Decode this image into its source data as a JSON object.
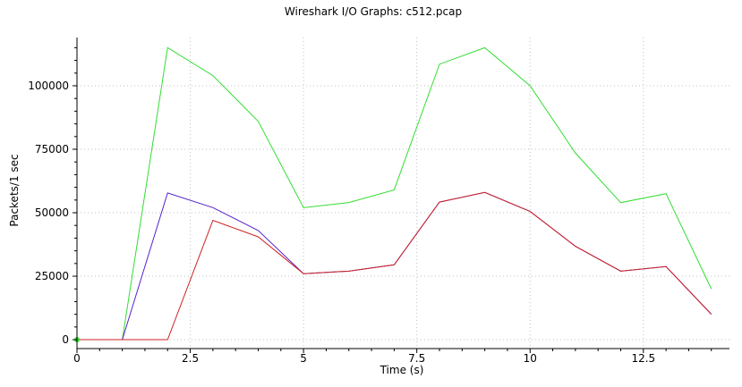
{
  "chart_data": {
    "type": "line",
    "title": "Wireshark I/O Graphs: c512.pcap",
    "xlabel": "Time (s)",
    "ylabel": "Packets/1 sec",
    "xlim": [
      0,
      14.4
    ],
    "ylim": [
      -3500,
      119000
    ],
    "grid": true,
    "x_ticks": [
      0,
      2.5,
      5,
      7.5,
      10,
      12.5
    ],
    "x_tick_labels": [
      "0",
      "2.5",
      "5",
      "7.5",
      "10",
      "12.5"
    ],
    "x_minor_step": 0.5,
    "y_ticks": [
      0,
      25000,
      50000,
      75000,
      100000
    ],
    "y_tick_labels": [
      "0",
      "25000",
      "50000",
      "75000",
      "100000"
    ],
    "y_minor_step": 5000,
    "x": [
      0,
      1,
      2,
      3,
      4,
      5,
      6,
      7,
      8,
      9,
      10,
      11,
      12,
      13,
      14
    ],
    "series": [
      {
        "color": "#33dd33",
        "values": [
          0,
          0,
          115000,
          104000,
          86000,
          52000,
          54000,
          59000,
          108500,
          115000,
          100000,
          73500,
          54000,
          57500,
          20000
        ]
      },
      {
        "color": "#5522cc",
        "values": [
          0,
          0,
          57800,
          52000,
          43000,
          26000,
          27000,
          29500,
          54200,
          58000,
          50500,
          36800,
          27000,
          28800,
          10000
        ]
      },
      {
        "color": "#cc2222",
        "values": [
          0,
          0,
          0,
          47000,
          40500,
          26000,
          27000,
          29500,
          54200,
          58000,
          50500,
          36800,
          27000,
          28800,
          10000
        ]
      }
    ]
  }
}
